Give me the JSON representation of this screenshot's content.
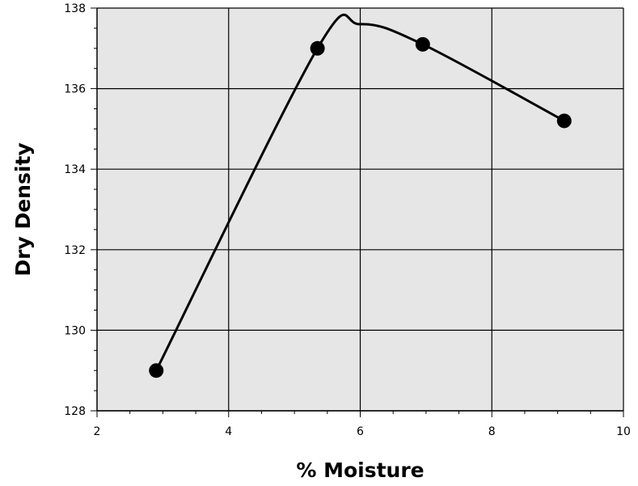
{
  "chart_data": {
    "type": "line",
    "title": "",
    "xlabel": "% Moisture",
    "ylabel": "Dry Density",
    "xlim": [
      2,
      10
    ],
    "ylim": [
      128,
      138
    ],
    "xticks": [
      2,
      4,
      6,
      8,
      10
    ],
    "yticks": [
      128,
      130,
      132,
      134,
      136,
      138
    ],
    "grid": true,
    "line_style": "smooth curve through points",
    "series": [
      {
        "points": [
          {
            "x": 2.9,
            "y": 129.0
          },
          {
            "x": 5.35,
            "y": 137.0
          },
          {
            "x": 6.95,
            "y": 137.1
          },
          {
            "x": 9.1,
            "y": 135.2
          }
        ]
      }
    ],
    "curve_peak": {
      "x": 6.0,
      "y": 137.6
    },
    "colors": {
      "plot_background": "#e6e6e6",
      "grid": "#000000",
      "line": "#000000",
      "marker": "#000000"
    }
  }
}
